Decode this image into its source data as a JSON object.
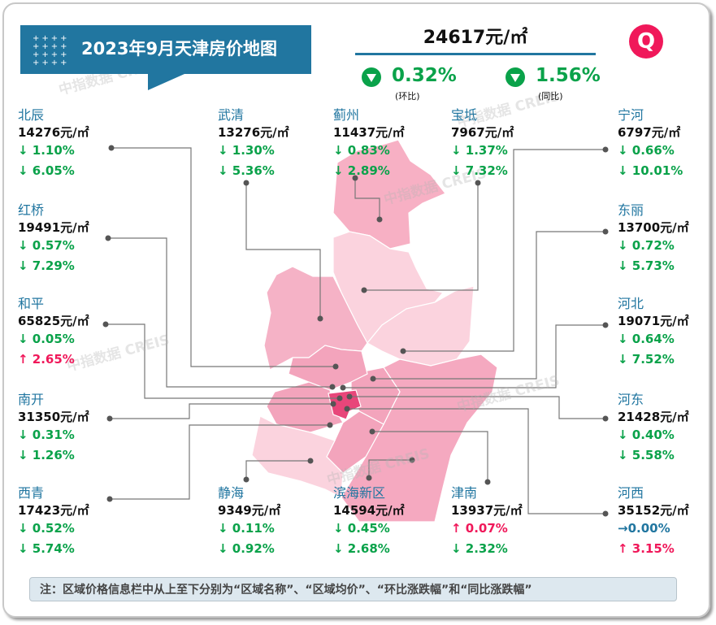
{
  "header": {
    "title": "2023年9月天津房价地图",
    "avg_price": "24617元/㎡",
    "mom": "0.32%",
    "mom_label": "(环比)",
    "yoy": "1.56%",
    "yoy_label": "(同比)",
    "trend_icon": "triangle-down-icon",
    "logo_text": "Q"
  },
  "watermark": "中指数据 CREIS",
  "colors": {
    "brand": "#2176a0",
    "down": "#0aa24a",
    "up": "#f0185a",
    "flat": "#2176a0"
  },
  "districts": [
    {
      "name": "北辰",
      "price": "14276元/㎡",
      "mom": "↓ 1.10%",
      "mom_dir": "down",
      "yoy": "↓ 6.05%",
      "yoy_dir": "down"
    },
    {
      "name": "武清",
      "price": "13276元/㎡",
      "mom": "↓ 1.30%",
      "mom_dir": "down",
      "yoy": "↓ 5.36%",
      "yoy_dir": "down"
    },
    {
      "name": "蓟州",
      "price": "11437元/㎡",
      "mom": "↓ 0.83%",
      "mom_dir": "down",
      "yoy": "↓ 2.89%",
      "yoy_dir": "down"
    },
    {
      "name": "宝坻",
      "price": "7967元/㎡",
      "mom": "↓ 1.37%",
      "mom_dir": "down",
      "yoy": "↓ 7.32%",
      "yoy_dir": "down"
    },
    {
      "name": "宁河",
      "price": "6797元/㎡",
      "mom": "↓ 0.66%",
      "mom_dir": "down",
      "yoy": "↓ 10.01%",
      "yoy_dir": "down"
    },
    {
      "name": "红桥",
      "price": "19491元/㎡",
      "mom": "↓ 0.57%",
      "mom_dir": "down",
      "yoy": "↓ 7.29%",
      "yoy_dir": "down"
    },
    {
      "name": "东丽",
      "price": "13700元/㎡",
      "mom": "↓ 0.72%",
      "mom_dir": "down",
      "yoy": "↓ 5.73%",
      "yoy_dir": "down"
    },
    {
      "name": "和平",
      "price": "65825元/㎡",
      "mom": "↓ 0.05%",
      "mom_dir": "down",
      "yoy": "↑ 2.65%",
      "yoy_dir": "up"
    },
    {
      "name": "河北",
      "price": "19071元/㎡",
      "mom": "↓ 0.64%",
      "mom_dir": "down",
      "yoy": "↓ 7.52%",
      "yoy_dir": "down"
    },
    {
      "name": "南开",
      "price": "31350元/㎡",
      "mom": "↓ 0.31%",
      "mom_dir": "down",
      "yoy": "↓ 1.26%",
      "yoy_dir": "down"
    },
    {
      "name": "河东",
      "price": "21428元/㎡",
      "mom": "↓ 0.40%",
      "mom_dir": "down",
      "yoy": "↓ 5.58%",
      "yoy_dir": "down"
    },
    {
      "name": "西青",
      "price": "17423元/㎡",
      "mom": "↓ 0.52%",
      "mom_dir": "down",
      "yoy": "↓ 5.74%",
      "yoy_dir": "down"
    },
    {
      "name": "静海",
      "price": "9349元/㎡",
      "mom": "↓ 0.11%",
      "mom_dir": "down",
      "yoy": "↓ 0.92%",
      "yoy_dir": "down"
    },
    {
      "name": "滨海新区",
      "price": "14594元/㎡",
      "mom": "↓ 0.45%",
      "mom_dir": "down",
      "yoy": "↓ 2.68%",
      "yoy_dir": "down"
    },
    {
      "name": "津南",
      "price": "13937元/㎡",
      "mom": "↑ 0.07%",
      "mom_dir": "up",
      "yoy": "↓ 2.32%",
      "yoy_dir": "down"
    },
    {
      "name": "河西",
      "price": "35152元/㎡",
      "mom": "→0.00%",
      "mom_dir": "flat",
      "yoy": "↑ 3.15%",
      "yoy_dir": "up"
    }
  ],
  "note": "注：区域价格信息栏中从上至下分别为“区域名称”、“区域均价”、“环比涨跌幅”和“同比涨跌幅”"
}
